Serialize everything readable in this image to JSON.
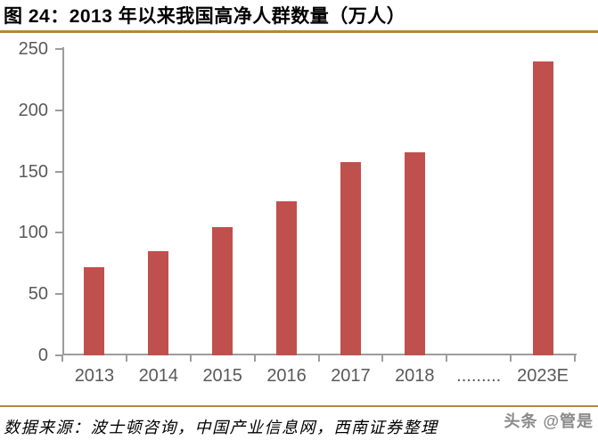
{
  "figure": {
    "title": "图 24：2013 年以来我国高净人群数量（万人）",
    "source": "数据来源：波士顿咨询，中国产业信息网，西南证券整理",
    "watermark": "头条 @管是",
    "accent_color": "#B5873B"
  },
  "chart_data": {
    "type": "bar",
    "title": "2013 年以来我国高净人群数量（万人）",
    "categories": [
      "2013",
      "2014",
      "2015",
      "2016",
      "2017",
      "2018",
      ".........",
      "2023E"
    ],
    "values": [
      72,
      85,
      105,
      126,
      158,
      166,
      null,
      240
    ],
    "xlabel": "",
    "ylabel": "",
    "ylim": [
      0,
      250
    ],
    "yticks": [
      0,
      50,
      100,
      150,
      200,
      250
    ],
    "grid": false,
    "legend": false,
    "bar_color": "#C0504D",
    "axis_color": "#9C9C9C",
    "tick_label_color": "#595959"
  }
}
